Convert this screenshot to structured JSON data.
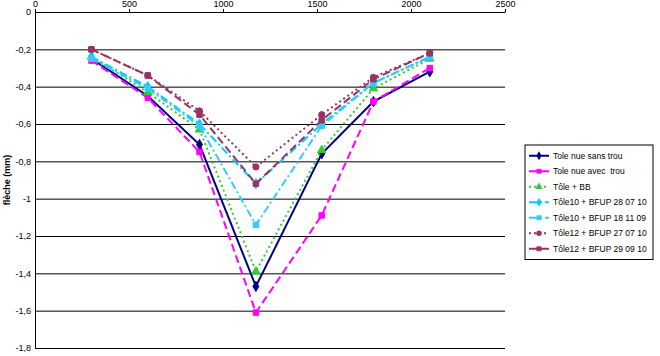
{
  "chart_data": {
    "type": "line",
    "y_label": "flèche (mm)",
    "x": [
      300,
      600,
      875,
      1175,
      1525,
      1800,
      2100
    ],
    "xlim": [
      0,
      2500
    ],
    "xticks": [
      0,
      500,
      1000,
      1500,
      2000,
      2500
    ],
    "ylim": [
      -1.8,
      0
    ],
    "yticks": [
      0,
      {
        "value": -0.2,
        "label": "-0,2"
      },
      {
        "value": -0.4,
        "label": "-0,4"
      },
      {
        "value": -0.6,
        "label": "-0,6"
      },
      {
        "value": -0.8,
        "label": "-0,8"
      },
      -1,
      {
        "value": -1.2,
        "label": "-1,2"
      },
      {
        "value": -1.4,
        "label": "-1,4"
      },
      {
        "value": -1.6,
        "label": "-1,6"
      },
      {
        "value": -1.8,
        "label": "-1,8"
      }
    ],
    "grid": true,
    "legend": "right",
    "series": [
      {
        "name": "Tole nue sans trou",
        "color": "#000080",
        "marker": "diamond",
        "line_style": "solid",
        "values": [
          -0.25,
          -0.45,
          -0.71,
          -1.47,
          -0.76,
          -0.48,
          -0.32
        ]
      },
      {
        "name": "Tole nue avec  trou",
        "color": "#ff00ff",
        "marker": "square",
        "line_style": "dashed",
        "values": [
          -0.26,
          -0.46,
          -0.75,
          -1.61,
          -1.09,
          -0.48,
          -0.3
        ]
      },
      {
        "name": "Tôle + BB",
        "color": "#33cc33",
        "marker": "triangle",
        "line_style": "dotted",
        "values": [
          -0.24,
          -0.43,
          -0.63,
          -1.39,
          -0.74,
          -0.41,
          -0.25
        ]
      },
      {
        "name": "Tôle10 + BFUP 28 07 10",
        "color": "#00ccff",
        "marker": "diamond",
        "line_style": "dashdot",
        "values": [
          -0.24,
          -0.4,
          -0.6,
          -0.92,
          -0.6,
          -0.38,
          -0.24
        ]
      },
      {
        "name": "Tôle10 + BFUP 18 11 09",
        "color": "#33ccff",
        "marker": "square",
        "line_style": "dashdot",
        "values": [
          -0.25,
          -0.41,
          -0.61,
          -1.14,
          -0.61,
          -0.38,
          -0.24
        ]
      },
      {
        "name": "Tôle12 + BFUP 27 07 10",
        "color": "#993366",
        "marker": "circle",
        "line_style": "dotted",
        "values": [
          -0.2,
          -0.34,
          -0.53,
          -0.83,
          -0.55,
          -0.35,
          -0.22
        ]
      },
      {
        "name": "Tôle12 + BFUP 29 09 10",
        "color": "#993366",
        "marker": "square",
        "line_style": "dashed",
        "values": [
          -0.2,
          -0.34,
          -0.55,
          -0.92,
          -0.58,
          -0.36,
          -0.22
        ]
      }
    ]
  }
}
